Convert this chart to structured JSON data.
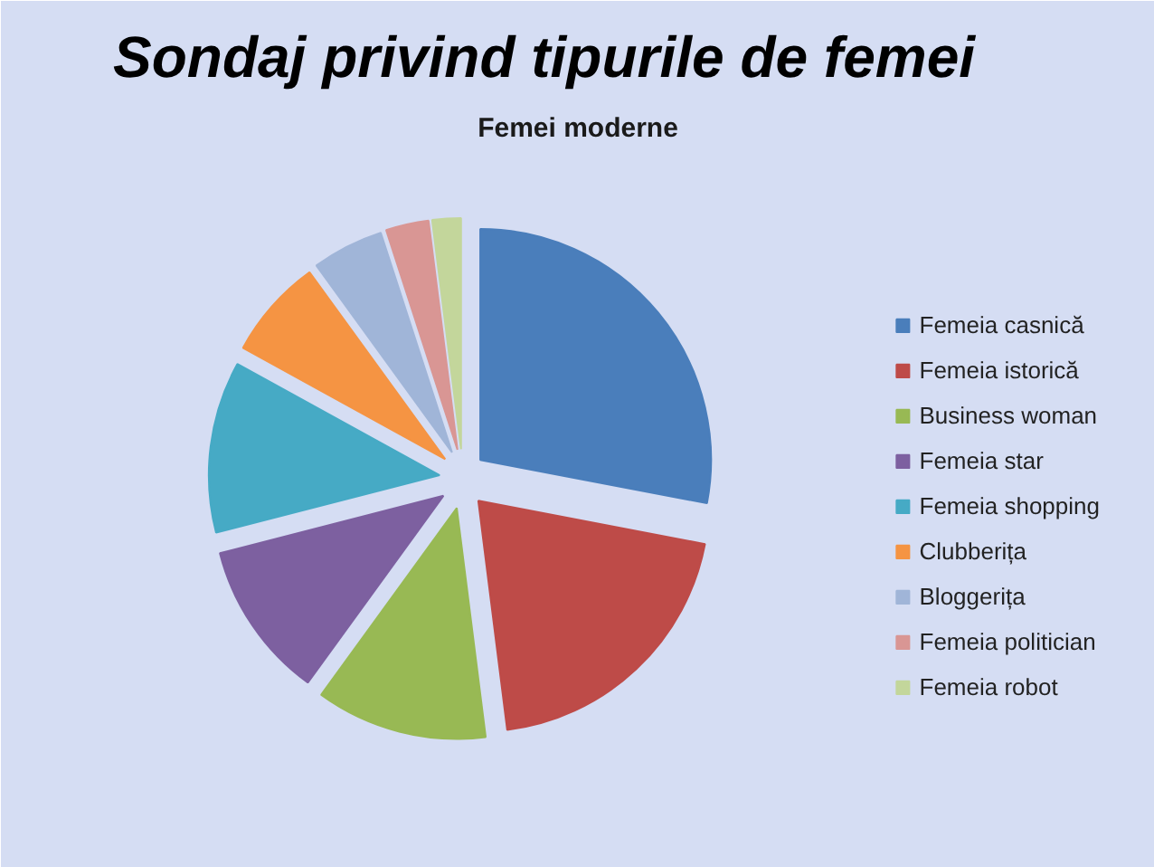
{
  "chart_data": {
    "type": "pie",
    "title": "Sondaj privind tipurile de femei",
    "subtitle": "Femei moderne",
    "categories": [
      "Femeia casnică",
      "Femeia istorică",
      "Business woman",
      "Femeia star",
      "Femeia shopping",
      "Clubberița",
      "Bloggerița",
      "Femeia politician",
      "Femeia robot"
    ],
    "values": [
      28,
      20,
      12,
      11,
      12,
      7,
      5,
      3,
      2
    ],
    "colors": [
      "#4a7ebb",
      "#be4b48",
      "#98b954",
      "#7d60a0",
      "#46aac5",
      "#f59443",
      "#a0b5d8",
      "#d99694",
      "#c3d69b"
    ],
    "legend": "right"
  }
}
